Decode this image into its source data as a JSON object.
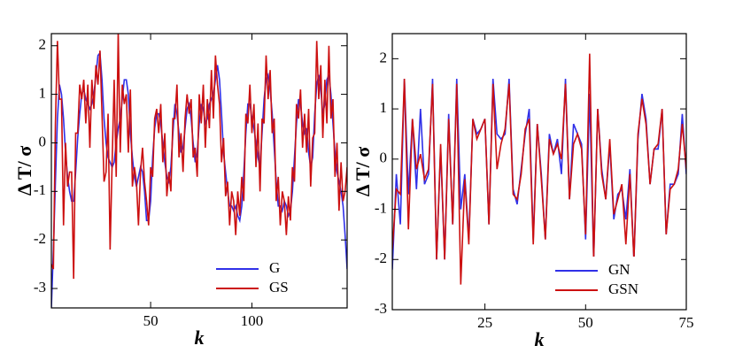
{
  "chart_data": [
    {
      "type": "line",
      "xlabel": "k",
      "ylabel": "Δ T/ σ",
      "x": [
        1,
        2,
        3,
        4,
        5,
        6,
        7,
        8,
        9,
        10,
        11,
        12,
        13,
        14,
        15,
        16,
        17,
        18,
        19,
        20,
        21,
        22,
        23,
        24,
        25,
        26,
        27,
        28,
        29,
        30,
        31,
        32,
        33,
        34,
        35,
        36,
        37,
        38,
        39,
        40,
        41,
        42,
        43,
        44,
        45,
        46,
        47,
        48,
        49,
        50,
        51,
        52,
        53,
        54,
        55,
        56,
        57,
        58,
        59,
        60,
        61,
        62,
        63,
        64,
        65,
        66,
        67,
        68,
        69,
        70,
        71,
        72,
        73,
        74,
        75,
        76,
        77,
        78,
        79,
        80,
        81,
        82,
        83,
        84,
        85,
        86,
        87,
        88,
        89,
        90,
        91,
        92,
        93,
        94,
        95,
        96,
        97,
        98,
        99,
        100,
        101,
        102,
        103,
        104,
        105,
        106,
        107,
        108,
        109,
        110,
        111,
        112,
        113,
        114,
        115,
        116,
        117,
        118,
        119,
        120,
        121,
        122,
        123,
        124,
        125,
        126,
        127,
        128,
        129,
        130,
        131,
        132,
        133,
        134,
        135,
        136,
        137,
        138,
        139,
        140,
        141,
        142,
        143,
        144,
        145,
        146,
        147
      ],
      "series": [
        {
          "name": "G",
          "color": "#3030e8",
          "values": [
            -3.4,
            -2.2,
            -0.8,
            0.5,
            1.2,
            1.0,
            0.5,
            -0.2,
            -0.7,
            -1.0,
            -1.2,
            -1.2,
            -0.6,
            0.1,
            0.6,
            1.0,
            1.1,
            0.9,
            0.8,
            0.7,
            0.8,
            1.0,
            1.4,
            1.8,
            1.85,
            1.3,
            0.5,
            0.0,
            -0.3,
            -0.4,
            -0.5,
            -0.4,
            0.0,
            0.3,
            0.5,
            0.9,
            1.3,
            1.3,
            1.0,
            0.2,
            -0.3,
            -0.7,
            -0.9,
            -0.7,
            -0.5,
            -0.6,
            -1.0,
            -1.6,
            -1.6,
            -1.2,
            -0.3,
            0.3,
            0.6,
            0.6,
            0.4,
            0.0,
            -0.4,
            -0.7,
            -0.8,
            -0.5,
            0.2,
            0.8,
            0.6,
            0.2,
            -0.2,
            -0.1,
            0.3,
            0.7,
            0.8,
            0.5,
            0.0,
            -0.4,
            -0.2,
            0.4,
            0.8,
            0.7,
            0.4,
            0.5,
            0.8,
            0.9,
            1.0,
            1.3,
            1.6,
            1.3,
            0.6,
            -0.2,
            -0.6,
            -1.0,
            -1.3,
            -1.3,
            -1.4,
            -1.3,
            -1.5,
            -1.6,
            -1.3,
            -0.6,
            0.2,
            0.8,
            0.8,
            0.5,
            0.3,
            0.0,
            -0.3,
            -0.5,
            0.2,
            0.9,
            1.3,
            1.4,
            1.1,
            0.6,
            -0.1,
            -0.8,
            -1.3,
            -1.3,
            -1.4,
            -1.2,
            -1.3,
            -1.5,
            -1.4,
            -1.0,
            -0.3,
            0.4,
            0.9,
            0.8,
            0.4,
            0.2,
            0.3,
            -0.2,
            -0.5,
            -0.3,
            0.6,
            1.2,
            1.4,
            1.1,
            0.6,
            0.8,
            1.3,
            1.4,
            1.0,
            0.4,
            -0.2,
            -0.6,
            -0.8,
            -1.0,
            -1.3,
            -1.9,
            -2.6
          ]
        },
        {
          "name": "GS",
          "color": "#cc1010",
          "values": [
            -2.5,
            -2.6,
            0.4,
            2.1,
            0.9,
            0.9,
            -1.7,
            0.0,
            -0.9,
            -0.6,
            -0.6,
            -2.8,
            0.2,
            0.2,
            1.2,
            0.9,
            1.3,
            0.4,
            1.2,
            -0.1,
            1.3,
            0.7,
            1.6,
            1.2,
            1.9,
            0.6,
            -0.8,
            -0.6,
            0.6,
            -2.2,
            -0.4,
            1.3,
            -0.7,
            2.3,
            -0.2,
            1.2,
            0.8,
            1.0,
            -0.2,
            1.1,
            -0.9,
            -0.5,
            -0.8,
            -1.7,
            -0.6,
            -0.1,
            -0.8,
            -1.2,
            -1.7,
            -0.5,
            -0.7,
            0.5,
            0.7,
            0.2,
            0.8,
            -0.4,
            0.2,
            -1.1,
            -0.6,
            -1.0,
            0.5,
            0.5,
            1.2,
            -0.3,
            0.2,
            -0.6,
            0.5,
            1.0,
            0.6,
            0.9,
            -0.3,
            -0.1,
            -0.7,
            1.0,
            0.4,
            1.2,
            -0.1,
            0.9,
            0.3,
            1.5,
            0.5,
            1.8,
            1.2,
            0.8,
            -0.4,
            0.1,
            -1.1,
            -0.8,
            -1.7,
            -1.0,
            -1.2,
            -1.9,
            -1.0,
            -1.5,
            -0.7,
            -1.2,
            0.6,
            0.4,
            1.2,
            0.2,
            0.8,
            -0.5,
            0.4,
            -1.0,
            0.5,
            0.4,
            1.8,
            0.9,
            1.5,
            0.2,
            0.5,
            -1.2,
            -0.7,
            -1.7,
            -1.0,
            -1.2,
            -1.9,
            -1.1,
            -1.6,
            -0.5,
            -0.8,
            0.8,
            0.5,
            1.1,
            -0.1,
            0.6,
            -0.2,
            0.7,
            -0.9,
            0.1,
            0.2,
            2.1,
            0.9,
            1.6,
            0.1,
            1.3,
            0.4,
            2.0,
            0.5,
            0.9,
            -0.7,
            0.0,
            -1.4,
            -0.4,
            -1.2,
            -1.0,
            -0.5
          ]
        }
      ],
      "xlim": [
        1,
        147
      ],
      "xticks": [
        50,
        100
      ],
      "ylim": [
        -3.4,
        2.25
      ],
      "yticks": [
        -3,
        -2,
        -1,
        0,
        1,
        2
      ],
      "legend": "lower right"
    },
    {
      "type": "line",
      "xlabel": "k",
      "ylabel": "Δ T/ σ",
      "x": [
        2,
        3,
        4,
        5,
        6,
        7,
        8,
        9,
        10,
        11,
        12,
        13,
        14,
        15,
        16,
        17,
        18,
        19,
        20,
        21,
        22,
        23,
        24,
        25,
        26,
        27,
        28,
        29,
        30,
        31,
        32,
        33,
        34,
        35,
        36,
        37,
        38,
        39,
        40,
        41,
        42,
        43,
        44,
        45,
        46,
        47,
        48,
        49,
        50,
        51,
        52,
        53,
        54,
        55,
        56,
        57,
        58,
        59,
        60,
        61,
        62,
        63,
        64,
        65,
        66,
        67,
        68,
        69,
        70,
        71,
        72,
        73,
        74,
        75
      ],
      "series": [
        {
          "name": "GN",
          "color": "#3030e8",
          "values": [
            -2.2,
            -0.3,
            -1.3,
            1.6,
            -0.7,
            0.8,
            -0.6,
            1.0,
            -0.5,
            -0.3,
            1.6,
            -2.0,
            0.2,
            -2.0,
            0.9,
            -1.3,
            1.6,
            -1.0,
            -0.3,
            -1.6,
            0.8,
            0.5,
            0.6,
            0.8,
            -1.3,
            1.6,
            0.5,
            0.4,
            0.5,
            1.6,
            -0.6,
            -0.9,
            -0.2,
            0.5,
            1.0,
            -1.6,
            0.7,
            -0.3,
            -1.6,
            0.5,
            0.1,
            0.4,
            -0.3,
            1.6,
            -0.8,
            0.7,
            0.5,
            0.3,
            -1.6,
            1.3,
            -2.0,
            1.0,
            -0.2,
            -0.8,
            0.3,
            -1.2,
            -0.7,
            -0.6,
            -1.2,
            -0.2,
            -2.0,
            0.4,
            1.3,
            0.8,
            -0.5,
            0.2,
            0.2,
            1.0,
            -1.5,
            -0.5,
            -0.5,
            -0.3,
            0.9,
            -0.3
          ]
        },
        {
          "name": "GSN",
          "color": "#cc1010",
          "values": [
            -1.8,
            -0.6,
            -0.7,
            1.6,
            -1.4,
            0.8,
            -0.2,
            0.1,
            -0.4,
            -0.2,
            1.5,
            -2.0,
            0.3,
            -2.0,
            0.8,
            -1.3,
            1.5,
            -2.5,
            -0.4,
            -1.7,
            0.8,
            0.4,
            0.6,
            0.8,
            -1.3,
            1.5,
            -0.2,
            0.3,
            0.6,
            1.5,
            -0.7,
            -0.8,
            -0.3,
            0.6,
            0.8,
            -1.7,
            0.7,
            -0.4,
            -1.6,
            0.4,
            0.1,
            0.3,
            0.0,
            1.5,
            -0.8,
            0.3,
            0.5,
            0.2,
            -1.5,
            2.1,
            -2.0,
            1.0,
            -0.3,
            -0.8,
            0.4,
            -1.1,
            -0.8,
            -0.5,
            -1.7,
            -0.3,
            -2.0,
            0.5,
            1.2,
            0.7,
            -0.5,
            0.2,
            0.3,
            1.0,
            -1.5,
            -0.6,
            -0.5,
            -0.2,
            0.7,
            -0.2
          ]
        }
      ],
      "xlim": [
        2,
        75
      ],
      "xticks": [
        25,
        50,
        75
      ],
      "ylim": [
        -3,
        2.5
      ],
      "yticks": [
        -3,
        -2,
        -1,
        0,
        1,
        2
      ],
      "legend": "lower right"
    }
  ]
}
